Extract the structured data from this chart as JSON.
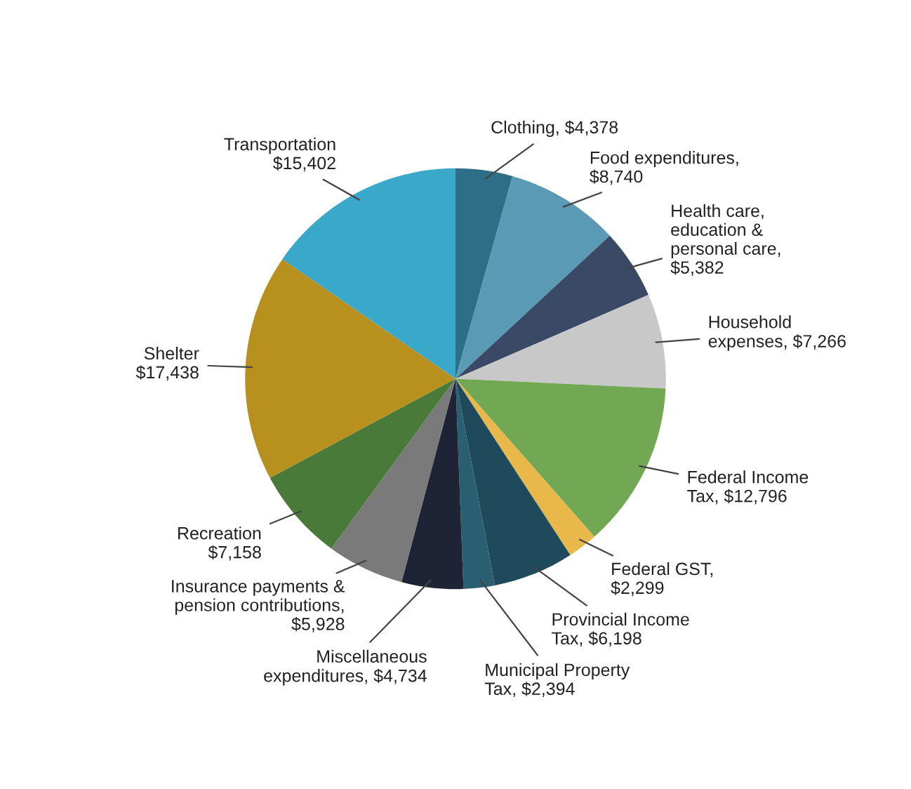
{
  "chart_data": {
    "type": "pie",
    "categories": [
      "Clothing, $4,378",
      "Food expenditures,\n$8,740",
      "Health care,\neducation &\npersonal care,\n$5,382",
      "Household\nexpenses, $7,266",
      "Federal Income\nTax, $12,796",
      "Federal GST,\n$2,299",
      "Provincial Income\nTax, $6,198",
      "Municipal Property\nTax, $2,394",
      "Miscellaneous\nexpenditures, $4,734",
      "Insurance payments &\npension contributions,\n$5,928",
      "Recreation\n$7,158",
      "Shelter\n$17,438",
      "Transportation\n$15,402"
    ],
    "values": [
      4378,
      8740,
      5382,
      7266,
      12796,
      2299,
      6198,
      2394,
      4734,
      5928,
      7158,
      17438,
      15402
    ],
    "colors": [
      "#2e6e86",
      "#5a9ab5",
      "#3a4a66",
      "#c8c8c8",
      "#72a854",
      "#e8b84a",
      "#1e4a5c",
      "#2a5f72",
      "#1e2435",
      "#7a7a7a",
      "#4a7a3a",
      "#b8901e",
      "#3aa8c8"
    ]
  }
}
